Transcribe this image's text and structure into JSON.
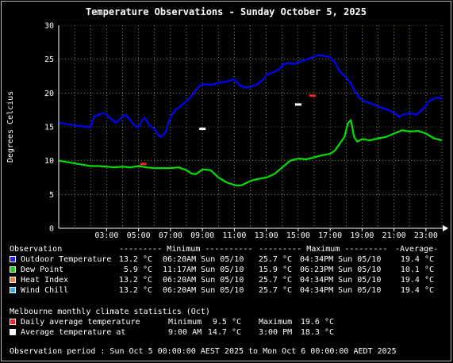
{
  "chart_data": {
    "type": "line",
    "title": "Temperature Observations - Sunday October 5, 2025",
    "ylabel": "Degrees Celcius",
    "xlabel": "",
    "ylim": [
      0,
      30
    ],
    "xlim": [
      0,
      24
    ],
    "y_ticks": [
      0,
      5,
      10,
      15,
      20,
      25,
      30
    ],
    "x_ticks": [
      {
        "v": 3,
        "label": "03:00"
      },
      {
        "v": 5,
        "label": "05:00"
      },
      {
        "v": 7,
        "label": "07:00"
      },
      {
        "v": 9,
        "label": "09:00"
      },
      {
        "v": 11,
        "label": "11:00"
      },
      {
        "v": 13,
        "label": "13:00"
      },
      {
        "v": 15,
        "label": "15:00"
      },
      {
        "v": 17,
        "label": "17:00"
      },
      {
        "v": 19,
        "label": "19:00"
      },
      {
        "v": 21,
        "label": "21:00"
      },
      {
        "v": 23,
        "label": "23:00"
      }
    ],
    "grid": true,
    "colors": {
      "outdoor": "#0000ff",
      "dew": "#00e000",
      "avg_marker": "#ff2020",
      "avg_temp_marker": "#ffffff",
      "grid": "#d8d88a",
      "axis": "#ffffff"
    },
    "series": [
      {
        "name": "Outdoor Temperature",
        "color": "#0000ff",
        "x": [
          0,
          0.5,
          1,
          1.3,
          1.7,
          2,
          2.2,
          2.5,
          2.8,
          3,
          3.3,
          3.6,
          3.9,
          4.2,
          4.5,
          4.8,
          5,
          5.2,
          5.4,
          5.7,
          6,
          6.2,
          6.4,
          6.7,
          7,
          7.3,
          7.6,
          8,
          8.3,
          8.6,
          8.9,
          9.2,
          9.5,
          10,
          10.5,
          11,
          11.3,
          11.6,
          12,
          12.4,
          12.8,
          13.1,
          13.4,
          13.8,
          14.1,
          14.4,
          14.7,
          15,
          15.3,
          15.7,
          16,
          16.3,
          16.6,
          17,
          17.3,
          17.6,
          17.9,
          18.2,
          18.5,
          18.8,
          19.1,
          19.5,
          20,
          20.5,
          21,
          21.3,
          21.6,
          22,
          22.4,
          22.8,
          23.2,
          23.6,
          24
        ],
        "y": [
          15.6,
          15.4,
          15.2,
          15.1,
          15.0,
          15.0,
          16.5,
          16.8,
          17.0,
          16.8,
          16.1,
          15.6,
          16.3,
          16.8,
          15.9,
          15.1,
          14.9,
          15.9,
          16.3,
          15.2,
          14.7,
          13.8,
          13.5,
          14.2,
          16.5,
          17.5,
          18.0,
          18.8,
          19.5,
          20.5,
          21.2,
          21.3,
          21.2,
          21.5,
          21.7,
          22.0,
          21.2,
          20.8,
          20.9,
          21.2,
          22.0,
          22.8,
          23.0,
          23.5,
          24.3,
          24.4,
          24.3,
          24.5,
          24.8,
          25.1,
          25.4,
          25.6,
          25.5,
          25.3,
          24.5,
          23.2,
          22.5,
          21.8,
          20.5,
          19.3,
          18.8,
          18.5,
          18.0,
          17.6,
          17.1,
          16.5,
          16.8,
          17.0,
          16.8,
          17.6,
          18.8,
          19.3,
          19.2
        ]
      },
      {
        "name": "Dew Point",
        "color": "#00e000",
        "x": [
          0,
          0.5,
          1,
          1.5,
          2,
          2.5,
          3,
          3.5,
          4,
          4.5,
          5,
          5.5,
          6,
          6.5,
          7,
          7.5,
          8,
          8.3,
          8.6,
          9,
          9.5,
          10,
          10.5,
          11,
          11.2,
          11.5,
          12,
          12.5,
          13,
          13.5,
          14,
          14.5,
          15,
          15.5,
          16,
          16.5,
          17,
          17.3,
          17.6,
          17.9,
          18.1,
          18.3,
          18.5,
          18.7,
          19,
          19.5,
          20,
          20.5,
          21,
          21.5,
          22,
          22.5,
          23,
          23.5,
          24
        ],
        "y": [
          10.0,
          9.8,
          9.6,
          9.4,
          9.2,
          9.2,
          9.1,
          9.0,
          9.1,
          9.0,
          9.2,
          9.0,
          8.9,
          8.9,
          8.9,
          9.0,
          8.6,
          8.1,
          8.0,
          8.7,
          8.6,
          7.5,
          6.8,
          6.4,
          6.3,
          6.4,
          7.0,
          7.3,
          7.5,
          8.0,
          9.0,
          10.0,
          10.3,
          10.2,
          10.5,
          10.8,
          11.0,
          11.5,
          12.5,
          13.5,
          15.5,
          16.0,
          13.5,
          12.8,
          13.2,
          13.0,
          13.3,
          13.5,
          14.0,
          14.5,
          14.3,
          14.4,
          14.0,
          13.3,
          13.0
        ]
      }
    ],
    "markers": [
      {
        "name": "Daily average temperature",
        "kind": "bar",
        "color": "#ff2020",
        "points": [
          {
            "x": 5.3,
            "y": 9.5
          },
          {
            "x": 15.9,
            "y": 19.6
          }
        ]
      },
      {
        "name": "Average temperature",
        "kind": "bar",
        "color": "#ffffff",
        "points": [
          {
            "x": 9.0,
            "y": 14.7
          },
          {
            "x": 15.0,
            "y": 18.3
          }
        ]
      }
    ]
  },
  "legend": {
    "header": {
      "observation": "Observation",
      "minimum": "--------- Minimum ----------",
      "maximum": "--------- Maximum ---------",
      "average": "-Average-"
    },
    "rows": [
      {
        "label": "Outdoor Temperature",
        "color": "#2020ff",
        "min": "13.2 °C",
        "min_time": "06:20AM Sun 05/10",
        "max": "25.7 °C",
        "max_time": "04:34PM Sun 05/10",
        "avg": "19.4 °C"
      },
      {
        "label": "Dew Point",
        "color": "#20d020",
        "min": "5.9 °C",
        "min_time": "11:17AM Sun 05/10",
        "max": "15.9 °C",
        "max_time": "06:23PM Sun 05/10",
        "avg": "10.1 °C"
      },
      {
        "label": "Heat Index",
        "color": "#f08040",
        "min": "13.2 °C",
        "min_time": "06:20AM Sun 05/10",
        "max": "25.7 °C",
        "max_time": "04:34PM Sun 05/10",
        "avg": "19.4 °C"
      },
      {
        "label": "Wind Chill",
        "color": "#40a8f0",
        "min": "13.2 °C",
        "min_time": "06:20AM Sun 05/10",
        "max": "25.7 °C",
        "max_time": "04:34PM Sun 05/10",
        "avg": "19.4 °C"
      }
    ]
  },
  "climate": {
    "title": "Melbourne monthly climate statistics (Oct)",
    "rows": [
      {
        "label": "Daily average temperature",
        "color": "#ff2020",
        "c1": "Minimum",
        "c2": "9.5 °C",
        "c3": "Maximum",
        "c4": "19.6 °C"
      },
      {
        "label": "Average temperature at",
        "color": "#ffffff",
        "c1": "9:00 AM",
        "c2": "14.7 °C",
        "c3": "3:00 PM",
        "c4": "18.3 °C"
      }
    ]
  },
  "footer": "Observation period : Sun Oct 5 00:00:00 AEST 2025 to Mon Oct 6 00:00:00 AEDT 2025"
}
